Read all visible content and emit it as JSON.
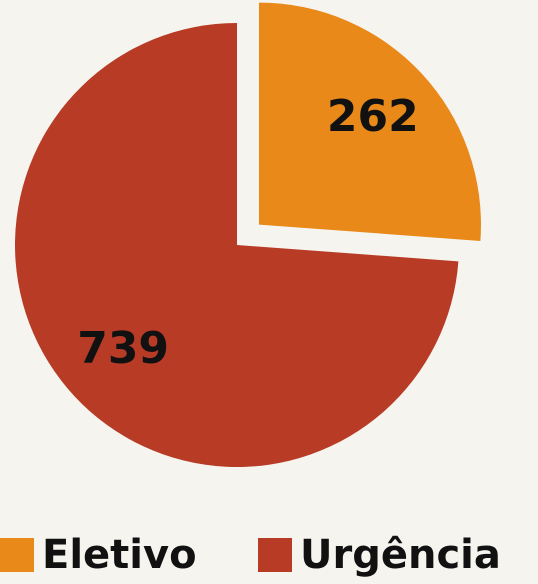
{
  "chart_data": {
    "type": "pie",
    "categories": [
      "Eletivo",
      "Urgência"
    ],
    "values": [
      262,
      739
    ],
    "colors": [
      "#e8891a",
      "#b83b26"
    ],
    "explode": [
      true,
      false
    ],
    "legend": "bottom"
  }
}
